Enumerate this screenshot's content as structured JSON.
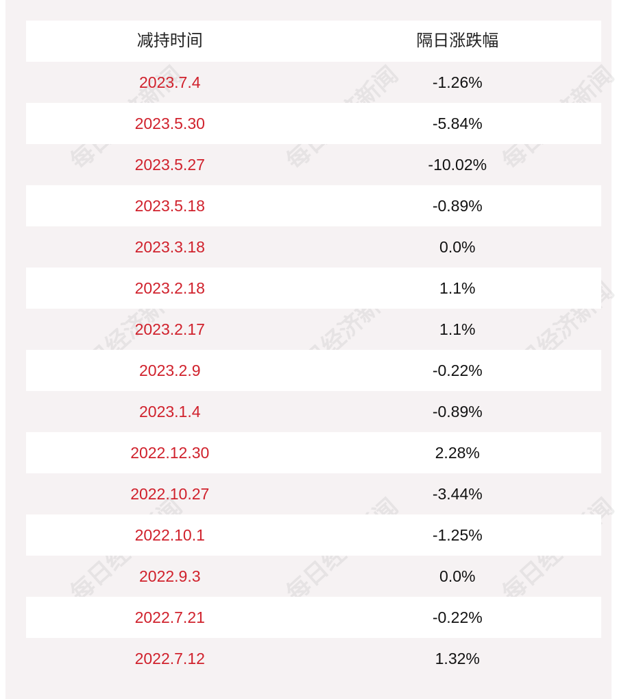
{
  "table": {
    "headers": [
      "减持时间",
      "隔日涨跌幅"
    ],
    "rows": [
      {
        "date": "2023.7.4",
        "change": "-1.26%"
      },
      {
        "date": "2023.5.30",
        "change": "-5.84%"
      },
      {
        "date": "2023.5.27",
        "change": "-10.02%"
      },
      {
        "date": "2023.5.18",
        "change": "-0.89%"
      },
      {
        "date": "2023.3.18",
        "change": "0.0%"
      },
      {
        "date": "2023.2.18",
        "change": "1.1%"
      },
      {
        "date": "2023.2.17",
        "change": "1.1%"
      },
      {
        "date": "2023.2.9",
        "change": "-0.22%"
      },
      {
        "date": "2023.1.4",
        "change": "-0.89%"
      },
      {
        "date": "2022.12.30",
        "change": "2.28%"
      },
      {
        "date": "2022.10.27",
        "change": "-3.44%"
      },
      {
        "date": "2022.10.1",
        "change": "-1.25%"
      },
      {
        "date": "2022.9.3",
        "change": "0.0%"
      },
      {
        "date": "2022.7.21",
        "change": "-0.22%"
      },
      {
        "date": "2022.7.12",
        "change": "1.32%"
      }
    ]
  },
  "watermark": "每日经济新闻",
  "colors": {
    "date_text": "#d0212c",
    "value_text": "#111111",
    "background": "#f6f2f3"
  }
}
